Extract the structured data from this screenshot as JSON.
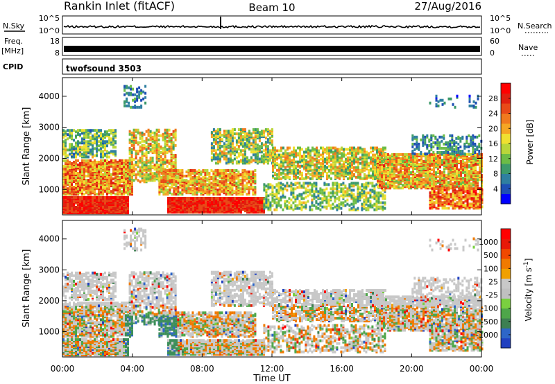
{
  "header": {
    "station": "Rankin Inlet (fitACF)",
    "beam": "Beam 10",
    "date": "27/Aug/2016"
  },
  "strips": {
    "nsky": {
      "label": "N.Sky",
      "ticks": [
        "10^5",
        "10^0"
      ]
    },
    "nsearch": {
      "label": "N.Search",
      "ticks": [
        "10^5",
        "10^0"
      ]
    },
    "freq": {
      "label_line1": "Freq.",
      "label_line2": "[MHz]",
      "ticks": [
        "18",
        "8"
      ]
    },
    "nave": {
      "label": "Nave",
      "ticks": [
        "60",
        "0"
      ]
    },
    "cpid": {
      "label": "CPID",
      "value": "twofsound 3503"
    }
  },
  "chart_data": [
    {
      "type": "heatmap",
      "quantity": "power",
      "xlabel": "",
      "ylabel": "Slant Range [km]",
      "x_ticks": [
        "00:00",
        "04:00",
        "08:00",
        "12:00",
        "16:00",
        "20:00",
        "00:00"
      ],
      "y_ticks": [
        "1000",
        "2000",
        "3000",
        "4000"
      ],
      "ylim": [
        180,
        4600
      ],
      "xlim_hours": [
        0,
        24
      ],
      "colorbar": {
        "label": "Power [dB]",
        "ticks": [
          "4",
          "8",
          "12",
          "16",
          "20",
          "24",
          "28"
        ],
        "colors": [
          "#0000ff",
          "#1e4fb4",
          "#2f7fa0",
          "#3d9a6a",
          "#6cbc46",
          "#b9d63a",
          "#f0e030",
          "#f5a623",
          "#f07a1e",
          "#e84a18",
          "#e02010",
          "#ff0000"
        ]
      }
    },
    {
      "type": "heatmap",
      "quantity": "velocity",
      "xlabel": "Time UT",
      "ylabel": "Slant Range [km]",
      "x_ticks": [
        "00:00",
        "04:00",
        "08:00",
        "12:00",
        "16:00",
        "20:00",
        "00:00"
      ],
      "y_ticks": [
        "1000",
        "2000",
        "3000",
        "4000"
      ],
      "ylim": [
        180,
        4600
      ],
      "xlim_hours": [
        0,
        24
      ],
      "colorbar": {
        "label": "Velocity [m s",
        "label_superscript": "-1",
        "label_close": "]",
        "ticks": [
          "1000",
          "500",
          "100",
          "25",
          "-25",
          "-100",
          "-500",
          "-1000"
        ],
        "colors": [
          "#2040c0",
          "#2e66c8",
          "#3d7f52",
          "#4ea64a",
          "#7ad040",
          "#c0c0c0",
          "#c8c8c8",
          "#f0a000",
          "#f07a00",
          "#f04800",
          "#e81808",
          "#ff0000"
        ]
      }
    }
  ]
}
